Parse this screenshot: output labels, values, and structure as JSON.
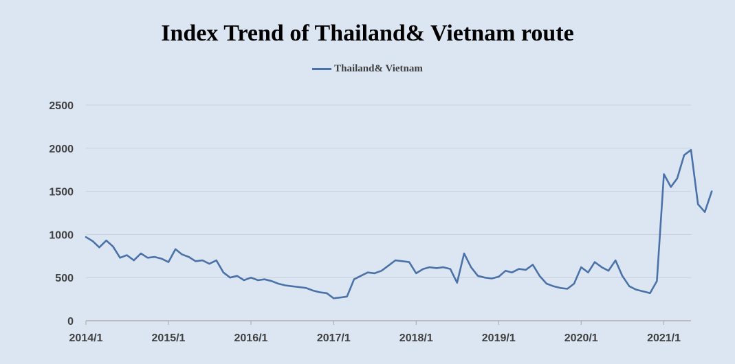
{
  "chart_data": {
    "type": "line",
    "title": "Index Trend of Thailand& Vietnam route",
    "xlabel": "",
    "ylabel": "",
    "ylim": [
      0,
      2500
    ],
    "y_ticks": [
      "0",
      "500",
      "1000",
      "1500",
      "2000",
      "2500"
    ],
    "x_ticks": [
      "2014/1",
      "2015/1",
      "2016/1",
      "2017/1",
      "2018/1",
      "2019/1",
      "2020/1",
      "2021/1"
    ],
    "grid": "horizontal",
    "legend_position": "top",
    "series": [
      {
        "name": "Thailand& Vietnam",
        "color": "#4a72a8",
        "points": [
          [
            "2014-01",
            970
          ],
          [
            "2014-02",
            920
          ],
          [
            "2014-03",
            850
          ],
          [
            "2014-04",
            930
          ],
          [
            "2014-05",
            860
          ],
          [
            "2014-06",
            730
          ],
          [
            "2014-07",
            760
          ],
          [
            "2014-08",
            700
          ],
          [
            "2014-09",
            780
          ],
          [
            "2014-10",
            730
          ],
          [
            "2014-11",
            740
          ],
          [
            "2014-12",
            720
          ],
          [
            "2015-01",
            680
          ],
          [
            "2015-02",
            830
          ],
          [
            "2015-03",
            770
          ],
          [
            "2015-04",
            740
          ],
          [
            "2015-05",
            690
          ],
          [
            "2015-06",
            700
          ],
          [
            "2015-07",
            660
          ],
          [
            "2015-08",
            700
          ],
          [
            "2015-09",
            560
          ],
          [
            "2015-10",
            500
          ],
          [
            "2015-11",
            520
          ],
          [
            "2015-12",
            470
          ],
          [
            "2016-01",
            500
          ],
          [
            "2016-02",
            470
          ],
          [
            "2016-03",
            480
          ],
          [
            "2016-04",
            460
          ],
          [
            "2016-05",
            430
          ],
          [
            "2016-06",
            410
          ],
          [
            "2016-07",
            400
          ],
          [
            "2016-08",
            390
          ],
          [
            "2016-09",
            380
          ],
          [
            "2016-10",
            350
          ],
          [
            "2016-11",
            330
          ],
          [
            "2016-12",
            320
          ],
          [
            "2017-01",
            260
          ],
          [
            "2017-02",
            270
          ],
          [
            "2017-03",
            280
          ],
          [
            "2017-04",
            480
          ],
          [
            "2017-05",
            520
          ],
          [
            "2017-06",
            560
          ],
          [
            "2017-07",
            550
          ],
          [
            "2017-08",
            580
          ],
          [
            "2017-09",
            640
          ],
          [
            "2017-10",
            700
          ],
          [
            "2017-11",
            690
          ],
          [
            "2017-12",
            680
          ],
          [
            "2018-01",
            550
          ],
          [
            "2018-02",
            600
          ],
          [
            "2018-03",
            620
          ],
          [
            "2018-04",
            610
          ],
          [
            "2018-05",
            620
          ],
          [
            "2018-06",
            600
          ],
          [
            "2018-07",
            440
          ],
          [
            "2018-08",
            780
          ],
          [
            "2018-09",
            620
          ],
          [
            "2018-10",
            520
          ],
          [
            "2018-11",
            500
          ],
          [
            "2018-12",
            490
          ],
          [
            "2019-01",
            510
          ],
          [
            "2019-02",
            580
          ],
          [
            "2019-03",
            560
          ],
          [
            "2019-04",
            600
          ],
          [
            "2019-05",
            590
          ],
          [
            "2019-06",
            650
          ],
          [
            "2019-07",
            520
          ],
          [
            "2019-08",
            430
          ],
          [
            "2019-09",
            400
          ],
          [
            "2019-10",
            380
          ],
          [
            "2019-11",
            370
          ],
          [
            "2019-12",
            430
          ],
          [
            "2020-01",
            620
          ],
          [
            "2020-02",
            560
          ],
          [
            "2020-03",
            680
          ],
          [
            "2020-04",
            620
          ],
          [
            "2020-05",
            580
          ],
          [
            "2020-06",
            700
          ],
          [
            "2020-07",
            520
          ],
          [
            "2020-08",
            400
          ],
          [
            "2020-09",
            360
          ],
          [
            "2020-10",
            340
          ],
          [
            "2020-11",
            320
          ],
          [
            "2020-12",
            460
          ],
          [
            "2021-01",
            1700
          ],
          [
            "2021-02",
            1550
          ],
          [
            "2021-03",
            1650
          ],
          [
            "2021-04",
            1920
          ],
          [
            "2021-05",
            1980
          ],
          [
            "2021-06",
            1350
          ],
          [
            "2021-07",
            1260
          ],
          [
            "2021-08",
            1500
          ]
        ]
      }
    ]
  }
}
